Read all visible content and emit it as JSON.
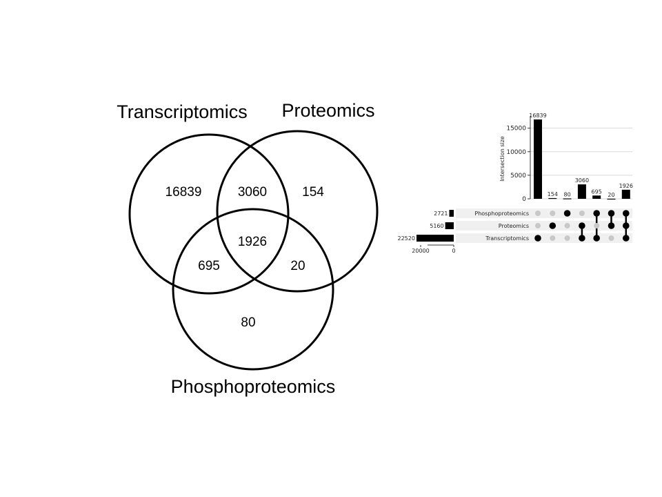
{
  "venn": {
    "labels": {
      "transcriptomics": "Transcriptomics",
      "proteomics": "Proteomics",
      "phosphoproteomics": "Phosphoproteomics"
    },
    "counts": {
      "transcriptomics_only": "16839",
      "transcriptomics_proteomics": "3060",
      "proteomics_only": "154",
      "all_three": "1926",
      "transcriptomics_phospho": "695",
      "proteomics_phospho": "20",
      "phospho_only": "80"
    }
  },
  "chart_data": {
    "type": "bar",
    "ylabel": "Intersection size",
    "ylim": [
      0,
      17000
    ],
    "yticks": [
      "0",
      "5000",
      "10000",
      "15000"
    ],
    "ytick_values": [
      0,
      5000,
      10000,
      15000
    ],
    "intersections": [
      {
        "value": 16839,
        "label": "16839",
        "members": [
          false,
          false,
          true
        ]
      },
      {
        "value": 154,
        "label": "154",
        "members": [
          false,
          true,
          false
        ]
      },
      {
        "value": 80,
        "label": "80",
        "members": [
          true,
          false,
          false
        ]
      },
      {
        "value": 3060,
        "label": "3060",
        "members": [
          false,
          true,
          true
        ]
      },
      {
        "value": 695,
        "label": "695",
        "members": [
          true,
          false,
          true
        ]
      },
      {
        "value": 20,
        "label": "20",
        "members": [
          true,
          true,
          false
        ]
      },
      {
        "value": 1926,
        "label": "1926",
        "members": [
          true,
          true,
          true
        ]
      }
    ],
    "sets": [
      {
        "name": "Phosphoproteomics",
        "size": 2721,
        "size_label": "2721"
      },
      {
        "name": "Proteomics",
        "size": 5160,
        "size_label": "5160"
      },
      {
        "name": "Transcriptomics",
        "size": 22520,
        "size_label": "22520"
      }
    ],
    "set_size_xticks": [
      "20000",
      "0"
    ],
    "set_size_tick_values": [
      20000,
      0
    ],
    "grid": true,
    "colors": {
      "bar": "#000000",
      "dot_on": "#000000",
      "dot_off": "#c8c8c8",
      "row_shade": "#f0f0f0",
      "grid": "#d9d9d9"
    }
  }
}
